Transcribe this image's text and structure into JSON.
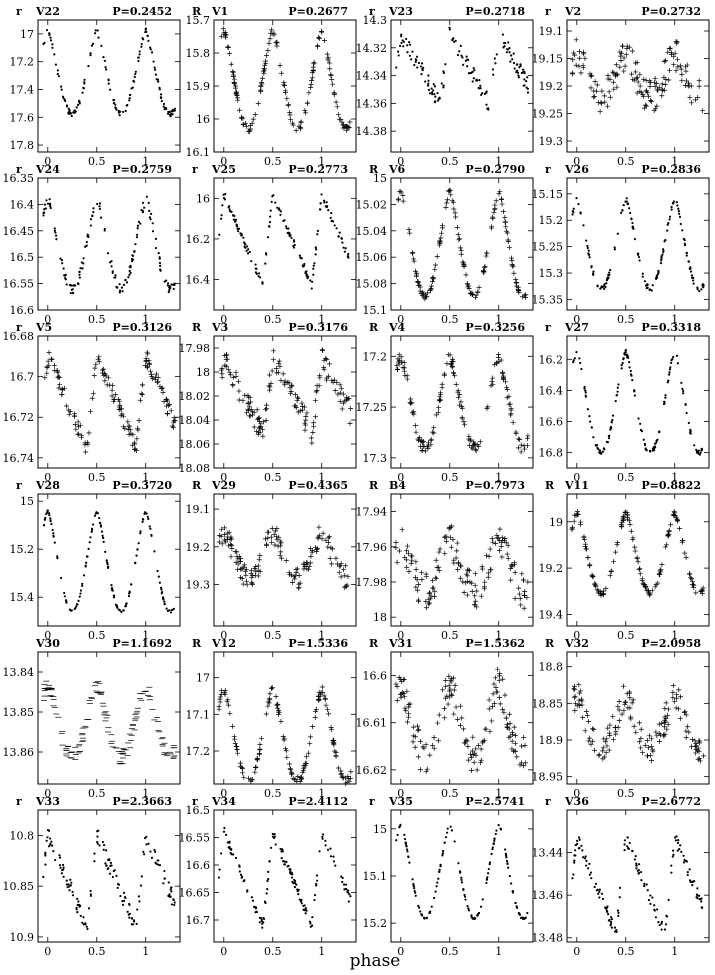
{
  "figure": {
    "xlabel": "phase"
  },
  "chart_data": [
    {
      "type": "scatter",
      "filter": "r",
      "star": "V22",
      "period": "P=0.2452",
      "xlim": [
        -0.1,
        1.35
      ],
      "ylim": [
        16.9,
        17.85
      ],
      "reversed": true,
      "xticks": [
        "0",
        "0.5",
        "1"
      ],
      "yticks": [
        "17",
        "17.2",
        "17.4",
        "17.6",
        "17.8"
      ],
      "marker": "dot",
      "amp": 0.6,
      "shape": "sym",
      "min": 16.98,
      "noise": 0.02,
      "n": 150
    },
    {
      "type": "scatter",
      "filter": "R",
      "star": "V1",
      "period": "P=0.2677",
      "xlim": [
        -0.1,
        1.35
      ],
      "ylim": [
        15.7,
        16.1
      ],
      "reversed": true,
      "xticks": [
        "0",
        "0.5",
        "1"
      ],
      "yticks": [
        "15.7",
        "15.8",
        "15.9",
        "16",
        "16.1"
      ],
      "marker": "plus",
      "amp": 0.3,
      "shape": "sym",
      "min": 15.73,
      "noise": 0.01,
      "n": 150
    },
    {
      "type": "scatter",
      "filter": "r",
      "star": "V23",
      "period": "P=0.2718",
      "xlim": [
        -0.1,
        1.35
      ],
      "ylim": [
        14.3,
        14.395
      ],
      "reversed": true,
      "xticks": [
        "0",
        "0.5",
        "1"
      ],
      "yticks": [
        "14.3",
        "14.32",
        "14.34",
        "14.36",
        "14.38"
      ],
      "marker": "dot",
      "amp": 0.05,
      "shape": "asym",
      "min": 14.31,
      "noise": 0.006,
      "n": 150
    },
    {
      "type": "scatter",
      "filter": "r",
      "star": "V2",
      "period": "P=0.2732",
      "xlim": [
        -0.1,
        1.35
      ],
      "ylim": [
        19.08,
        19.32
      ],
      "reversed": true,
      "xticks": [
        "0",
        "0.5",
        "1"
      ],
      "yticks": [
        "19.1",
        "19.15",
        "19.2",
        "19.25",
        "19.3"
      ],
      "marker": "plus",
      "amp": 0.08,
      "shape": "sym",
      "min": 19.14,
      "noise": 0.03,
      "n": 150
    },
    {
      "type": "scatter",
      "filter": "r",
      "star": "V24",
      "period": "P=0.2759",
      "xlim": [
        -0.1,
        1.35
      ],
      "ylim": [
        16.35,
        16.6
      ],
      "reversed": true,
      "xticks": [
        "0",
        "0.5",
        "1"
      ],
      "yticks": [
        "16.35",
        "16.4",
        "16.45",
        "16.5",
        "16.55",
        "16.6"
      ],
      "marker": "dot",
      "amp": 0.17,
      "shape": "sym",
      "min": 16.39,
      "noise": 0.01,
      "n": 150
    },
    {
      "type": "scatter",
      "filter": "r",
      "star": "V25",
      "period": "P=0.2773",
      "xlim": [
        -0.1,
        1.35
      ],
      "ylim": [
        15.9,
        16.55
      ],
      "reversed": true,
      "xticks": [
        "0",
        "0.5",
        "1"
      ],
      "yticks": [
        "16",
        "16.2",
        "16.4"
      ],
      "marker": "dot",
      "amp": 0.45,
      "shape": "asym",
      "min": 15.98,
      "noise": 0.02,
      "n": 150
    },
    {
      "type": "scatter",
      "filter": "R",
      "star": "V6",
      "period": "P=0.2790",
      "xlim": [
        -0.1,
        1.35
      ],
      "ylim": [
        15,
        15.1
      ],
      "reversed": true,
      "xticks": [
        "0",
        "0.5",
        "1"
      ],
      "yticks": [
        "15",
        "15.02",
        "15.04",
        "15.06",
        "15.08",
        "15.1"
      ],
      "marker": "plus",
      "amp": 0.08,
      "shape": "sym",
      "min": 15.01,
      "noise": 0.002,
      "n": 150
    },
    {
      "type": "scatter",
      "filter": "r",
      "star": "V26",
      "period": "P=0.2836",
      "xlim": [
        -0.1,
        1.35
      ],
      "ylim": [
        15.12,
        15.37
      ],
      "reversed": true,
      "xticks": [
        "0",
        "0.5",
        "1"
      ],
      "yticks": [
        "15.15",
        "15.2",
        "15.25",
        "15.3",
        "15.35"
      ],
      "marker": "dot",
      "amp": 0.17,
      "shape": "sym",
      "min": 15.16,
      "noise": 0.005,
      "n": 150
    },
    {
      "type": "scatter",
      "filter": "r",
      "star": "V5",
      "period": "P=0.3126",
      "xlim": [
        -0.1,
        1.35
      ],
      "ylim": [
        16.68,
        16.745
      ],
      "reversed": true,
      "xticks": [
        "0",
        "0.5",
        "1"
      ],
      "yticks": [
        "16.68",
        "16.7",
        "16.72",
        "16.74"
      ],
      "marker": "plus",
      "amp": 0.045,
      "shape": "asym",
      "min": 16.69,
      "noise": 0.004,
      "n": 150
    },
    {
      "type": "scatter",
      "filter": "R",
      "star": "V3",
      "period": "P=0.3176",
      "xlim": [
        -0.1,
        1.35
      ],
      "ylim": [
        17.97,
        18.08
      ],
      "reversed": true,
      "xticks": [
        "0",
        "0.5",
        "1"
      ],
      "yticks": [
        "17.98",
        "18",
        "18.02",
        "18.04",
        "18.06",
        "18.08"
      ],
      "marker": "plus",
      "amp": 0.06,
      "shape": "asym",
      "min": 17.99,
      "noise": 0.01,
      "n": 150
    },
    {
      "type": "scatter",
      "filter": "R",
      "star": "V4",
      "period": "P=0.3256",
      "xlim": [
        -0.1,
        1.35
      ],
      "ylim": [
        17.18,
        17.31
      ],
      "reversed": true,
      "xticks": [
        "0",
        "0.5",
        "1"
      ],
      "yticks": [
        "17.2",
        "17.25",
        "17.3"
      ],
      "marker": "plus",
      "amp": 0.09,
      "shape": "sym",
      "min": 17.2,
      "noise": 0.006,
      "n": 150
    },
    {
      "type": "scatter",
      "filter": "r",
      "star": "V27",
      "period": "P=0.3318",
      "xlim": [
        -0.1,
        1.35
      ],
      "ylim": [
        16.05,
        16.9
      ],
      "reversed": true,
      "xticks": [
        "0",
        "0.5",
        "1"
      ],
      "yticks": [
        "16.2",
        "16.4",
        "16.6",
        "16.8"
      ],
      "marker": "dot",
      "amp": 0.65,
      "shape": "sym",
      "min": 16.15,
      "noise": 0.015,
      "n": 150
    },
    {
      "type": "scatter",
      "filter": "r",
      "star": "V28",
      "period": "P=0.3720",
      "xlim": [
        -0.1,
        1.35
      ],
      "ylim": [
        14.97,
        15.52
      ],
      "reversed": true,
      "xticks": [
        "0",
        "0.5",
        "1"
      ],
      "yticks": [
        "15",
        "15.2",
        "15.4"
      ],
      "marker": "dot",
      "amp": 0.42,
      "shape": "sym",
      "min": 15.04,
      "noise": 0.005,
      "n": 150
    },
    {
      "type": "scatter",
      "filter": "R",
      "star": "V29",
      "period": "P=0.4365",
      "xlim": [
        -0.1,
        1.35
      ],
      "ylim": [
        19.06,
        19.41
      ],
      "reversed": true,
      "xticks": [
        "0",
        "0.5",
        "1"
      ],
      "yticks": [
        "19.1",
        "19.2",
        "19.3"
      ],
      "marker": "plus",
      "amp": 0.12,
      "shape": "sym",
      "min": 19.16,
      "noise": 0.03,
      "n": 150
    },
    {
      "type": "scatter",
      "filter": "R",
      "star": "B4",
      "period": "P=0.7973",
      "xlim": [
        -0.1,
        1.35
      ],
      "ylim": [
        17.93,
        18.005
      ],
      "reversed": true,
      "xticks": [
        "0",
        "0.5",
        "1"
      ],
      "yticks": [
        "17.94",
        "17.96",
        "17.98",
        "18"
      ],
      "marker": "plus",
      "amp": 0.03,
      "shape": "sym",
      "min": 17.955,
      "noise": 0.01,
      "n": 150
    },
    {
      "type": "scatter",
      "filter": "R",
      "star": "V11",
      "period": "P=0.8822",
      "xlim": [
        -0.1,
        1.35
      ],
      "ylim": [
        18.88,
        19.45
      ],
      "reversed": true,
      "xticks": [
        "0",
        "0.5",
        "1"
      ],
      "yticks": [
        "19",
        "19.2",
        "19.4"
      ],
      "marker": "plus",
      "amp": 0.35,
      "shape": "sym",
      "min": 18.96,
      "noise": 0.01,
      "n": 150
    },
    {
      "type": "scatter",
      "filter": "",
      "star": "V30",
      "period": "P=1.1692",
      "xlim": [
        -0.1,
        1.35
      ],
      "ylim": [
        13.835,
        13.868
      ],
      "reversed": true,
      "xticks": [
        "0",
        "0.5",
        "1"
      ],
      "yticks": [
        "13.84",
        "13.85",
        "13.86"
      ],
      "marker": "dash",
      "amp": 0.018,
      "shape": "sym",
      "min": 13.843,
      "noise": 0.002,
      "n": 150
    },
    {
      "type": "scatter",
      "filter": "R",
      "star": "V12",
      "period": "P=1.5336",
      "xlim": [
        -0.1,
        1.35
      ],
      "ylim": [
        16.93,
        17.29
      ],
      "reversed": true,
      "xticks": [
        "0",
        "0.5",
        "1"
      ],
      "yticks": [
        "17",
        "17.1",
        "17.2"
      ],
      "marker": "plus",
      "amp": 0.25,
      "shape": "sym",
      "min": 17.03,
      "noise": 0.01,
      "n": 150
    },
    {
      "type": "scatter",
      "filter": "R",
      "star": "V31",
      "period": "P=1.5362",
      "xlim": [
        -0.1,
        1.35
      ],
      "ylim": [
        16.595,
        16.623
      ],
      "reversed": true,
      "xticks": [
        "0",
        "0.5",
        "1"
      ],
      "yticks": [
        "16.6",
        "16.61",
        "16.62"
      ],
      "marker": "plus",
      "amp": 0.015,
      "shape": "sym",
      "min": 16.602,
      "noise": 0.004,
      "n": 150
    },
    {
      "type": "scatter",
      "filter": "R",
      "star": "V32",
      "period": "P=2.0958",
      "xlim": [
        -0.1,
        1.35
      ],
      "ylim": [
        18.78,
        18.96
      ],
      "reversed": true,
      "xticks": [
        "0",
        "0.5",
        "1"
      ],
      "yticks": [
        "18.8",
        "18.85",
        "18.9",
        "18.95"
      ],
      "marker": "plus",
      "amp": 0.07,
      "shape": "sym",
      "min": 18.84,
      "noise": 0.02,
      "n": 150
    },
    {
      "type": "scatter",
      "filter": "r",
      "star": "V33",
      "period": "P=2.3663",
      "xlim": [
        -0.1,
        1.35
      ],
      "ylim": [
        10.775,
        10.905
      ],
      "reversed": true,
      "xticks": [
        "0",
        "0.5",
        "1"
      ],
      "yticks": [
        "10.8",
        "10.85",
        "10.9"
      ],
      "marker": "dot",
      "amp": 0.09,
      "shape": "asym",
      "min": 10.8,
      "noise": 0.008,
      "n": 150
    },
    {
      "type": "scatter",
      "filter": "r",
      "star": "V34",
      "period": "P=2.4112",
      "xlim": [
        -0.1,
        1.35
      ],
      "ylim": [
        16.5,
        16.74
      ],
      "reversed": true,
      "xticks": [
        "0",
        "0.5",
        "1"
      ],
      "yticks": [
        "16.5",
        "16.55",
        "16.6",
        "16.65",
        "16.7"
      ],
      "marker": "dot",
      "amp": 0.17,
      "shape": "asym",
      "min": 16.54,
      "noise": 0.01,
      "n": 150
    },
    {
      "type": "scatter",
      "filter": "r",
      "star": "V35",
      "period": "P=2.5741",
      "xlim": [
        -0.1,
        1.35
      ],
      "ylim": [
        14.96,
        15.24
      ],
      "reversed": true,
      "xticks": [
        "0",
        "0.5",
        "1"
      ],
      "yticks": [
        "15",
        "15.1",
        "15.2"
      ],
      "marker": "dot",
      "amp": 0.2,
      "shape": "sym",
      "min": 14.99,
      "noise": 0.002,
      "n": 150
    },
    {
      "type": "scatter",
      "filter": "r",
      "star": "V36",
      "period": "P=2.6772",
      "xlim": [
        -0.1,
        1.35
      ],
      "ylim": [
        13.42,
        13.482
      ],
      "reversed": true,
      "xticks": [
        "0",
        "0.5",
        "1"
      ],
      "yticks": [
        "13.44",
        "13.46",
        "13.48"
      ],
      "marker": "dot",
      "amp": 0.045,
      "shape": "asym",
      "min": 13.433,
      "noise": 0.003,
      "n": 150
    }
  ]
}
